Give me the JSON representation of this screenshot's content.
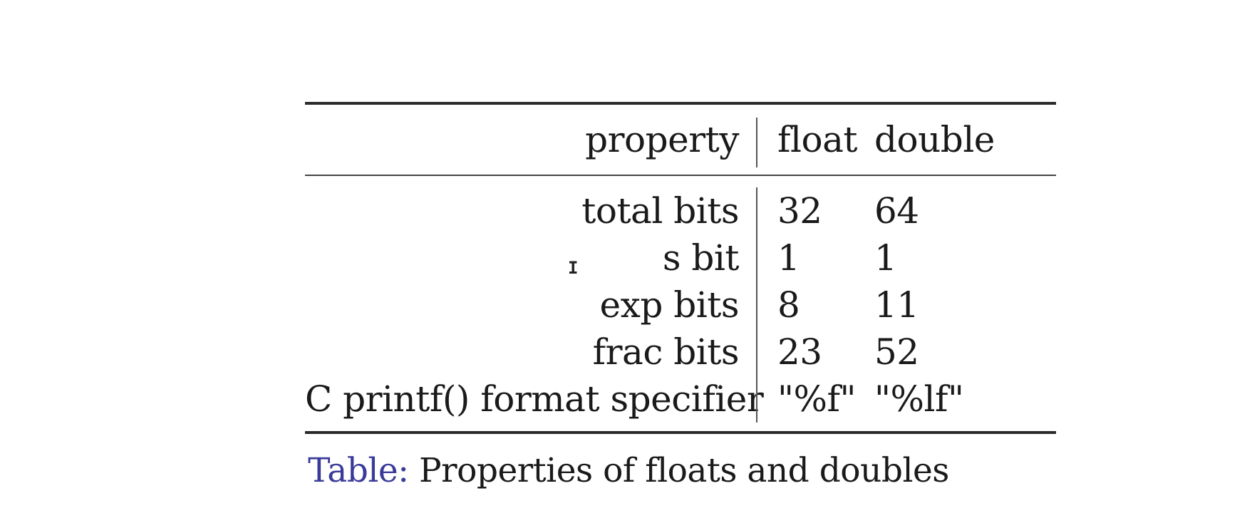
{
  "table": {
    "header": {
      "property": "property",
      "float": "float",
      "double": "double"
    },
    "rows": [
      {
        "property": "total bits",
        "float": "32",
        "double": "64"
      },
      {
        "property": "s bit",
        "float": "1",
        "double": "1"
      },
      {
        "property": "exp bits",
        "float": "8",
        "double": "11"
      },
      {
        "property": "frac bits",
        "float": "23",
        "double": "52"
      },
      {
        "property": "C printf() format specifier",
        "float": "\"%f\"",
        "double": "\"%lf\""
      }
    ]
  },
  "caption": {
    "label": "Table:",
    "text": "Properties of floats and doubles"
  },
  "cursor": {
    "glyph": "I",
    "icon": "text-cursor-icon"
  },
  "colors": {
    "caption_label": "#3a3a9a",
    "text": "#1a1a1a",
    "background": "#ffffff"
  }
}
